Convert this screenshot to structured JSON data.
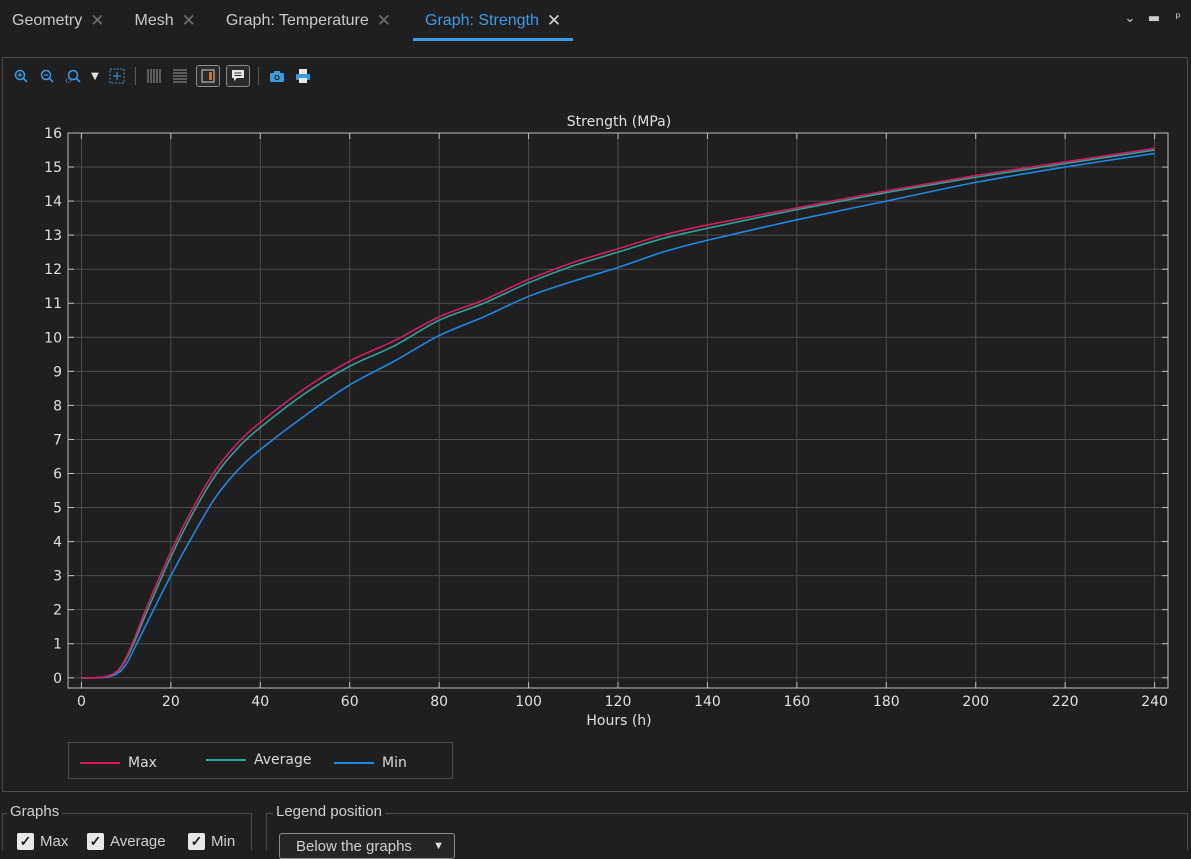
{
  "tabs": [
    {
      "label": "Geometry",
      "active": false
    },
    {
      "label": "Mesh",
      "active": false
    },
    {
      "label": "Graph: Temperature",
      "active": false
    },
    {
      "label": "Graph: Strength",
      "active": true
    }
  ],
  "toolbar_icons": [
    "zoom-in-icon",
    "zoom-out-icon",
    "zoom-region-icon",
    "dropdown-arrow-icon",
    "fit-icon",
    "vertical-grid-icon",
    "horizontal-grid-icon",
    "legend-toggle-icon",
    "annotation-icon",
    "camera-icon",
    "print-icon"
  ],
  "chart_data": {
    "type": "line",
    "title": "Strength (MPa)",
    "xlabel": "Hours (h)",
    "ylabel": "",
    "xlim": [
      -3,
      243
    ],
    "ylim": [
      -0.3,
      16
    ],
    "xticks": [
      0,
      20,
      40,
      60,
      80,
      100,
      120,
      140,
      160,
      180,
      200,
      220,
      240
    ],
    "yticks": [
      0,
      1,
      2,
      3,
      4,
      5,
      6,
      7,
      8,
      9,
      10,
      11,
      12,
      13,
      14,
      15,
      16
    ],
    "grid": true,
    "legend_position": "below",
    "series": [
      {
        "name": "Max",
        "color": "#d81b60",
        "x": [
          0,
          5,
          8,
          10,
          12,
          15,
          20,
          25,
          30,
          35,
          40,
          50,
          60,
          70,
          80,
          90,
          100,
          110,
          120,
          130,
          140,
          160,
          180,
          200,
          220,
          240
        ],
        "y": [
          0,
          0.02,
          0.2,
          0.6,
          1.2,
          2.2,
          3.7,
          5.0,
          6.1,
          6.9,
          7.5,
          8.5,
          9.3,
          9.9,
          10.6,
          11.1,
          11.7,
          12.2,
          12.6,
          13.0,
          13.3,
          13.8,
          14.3,
          14.75,
          15.15,
          15.55
        ]
      },
      {
        "name": "Average",
        "color": "#26a69a",
        "x": [
          0,
          5,
          8,
          10,
          12,
          15,
          20,
          25,
          30,
          35,
          40,
          50,
          60,
          70,
          80,
          90,
          100,
          110,
          120,
          130,
          140,
          160,
          180,
          200,
          220,
          240
        ],
        "y": [
          0,
          0.02,
          0.18,
          0.55,
          1.1,
          2.05,
          3.55,
          4.85,
          5.95,
          6.75,
          7.35,
          8.35,
          9.15,
          9.75,
          10.5,
          11.0,
          11.6,
          12.1,
          12.5,
          12.9,
          13.2,
          13.75,
          14.25,
          14.7,
          15.1,
          15.5
        ]
      },
      {
        "name": "Min",
        "color": "#1e88e5",
        "x": [
          0,
          5,
          8,
          10,
          12,
          15,
          20,
          25,
          30,
          35,
          40,
          50,
          60,
          70,
          80,
          90,
          100,
          110,
          120,
          130,
          140,
          160,
          180,
          200,
          220,
          240
        ],
        "y": [
          0,
          0.01,
          0.12,
          0.4,
          0.9,
          1.7,
          3.0,
          4.2,
          5.3,
          6.1,
          6.7,
          7.7,
          8.6,
          9.3,
          10.05,
          10.6,
          11.2,
          11.65,
          12.05,
          12.5,
          12.85,
          13.45,
          14.0,
          14.55,
          15.0,
          15.4
        ]
      }
    ]
  },
  "legend": {
    "items": [
      {
        "label": "Max",
        "color": "#d81b60"
      },
      {
        "label": "Average",
        "color": "#26a69a"
      },
      {
        "label": "Min",
        "color": "#1e88e5"
      }
    ]
  },
  "graphs_group": {
    "title": "Graphs",
    "checkboxes": [
      {
        "label": "Max",
        "checked": true
      },
      {
        "label": "Average",
        "checked": true
      },
      {
        "label": "Min",
        "checked": true
      }
    ]
  },
  "legend_position_group": {
    "title": "Legend position",
    "selected": "Below the graphs"
  }
}
